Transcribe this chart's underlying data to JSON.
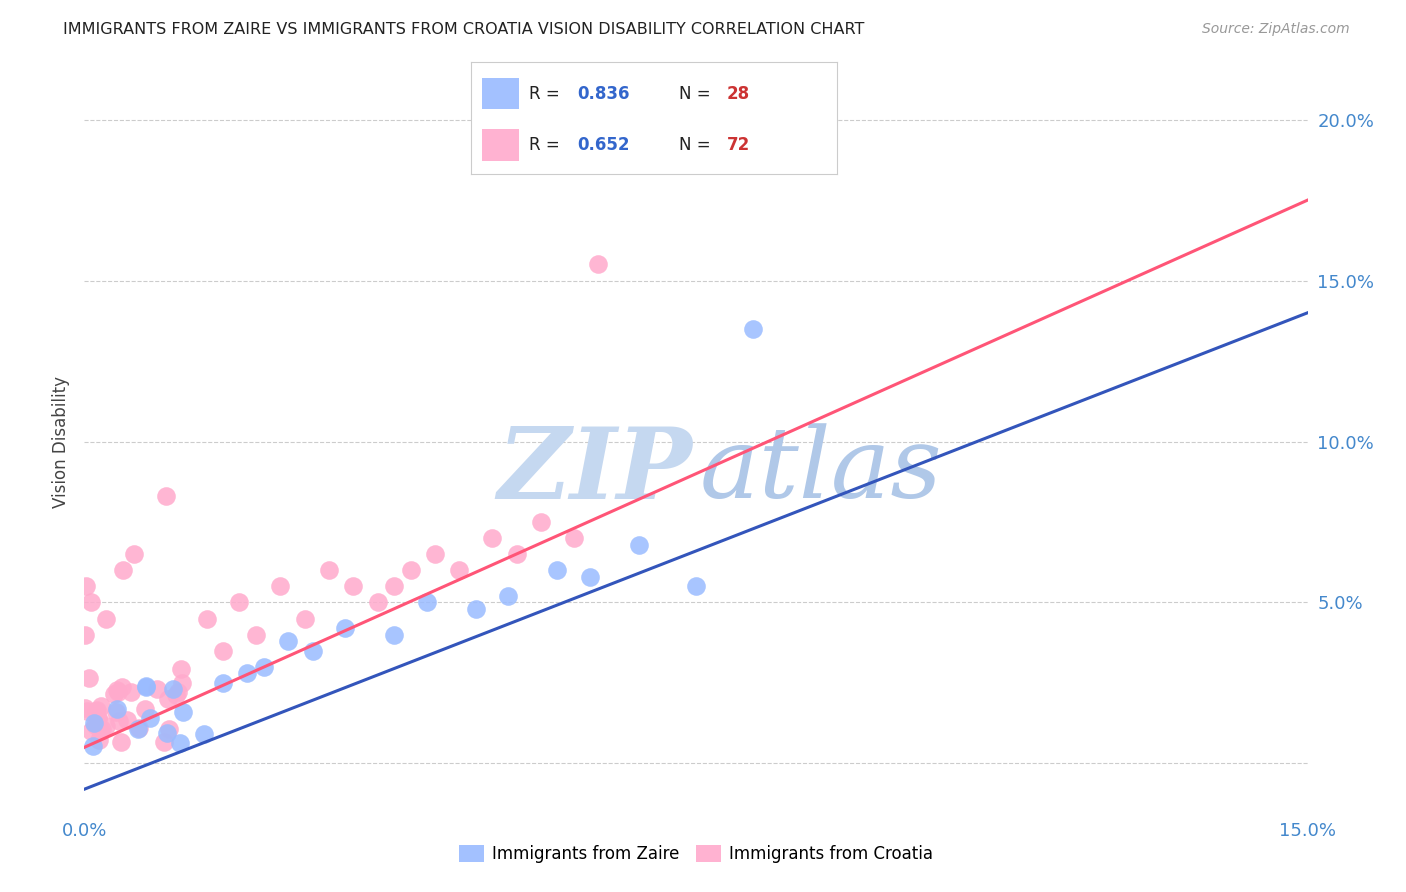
{
  "title": "IMMIGRANTS FROM ZAIRE VS IMMIGRANTS FROM CROATIA VISION DISABILITY CORRELATION CHART",
  "source": "Source: ZipAtlas.com",
  "ylabel": "Vision Disability",
  "xlim": [
    0.0,
    0.15
  ],
  "ylim": [
    -0.015,
    0.215
  ],
  "color_zaire": "#99bbff",
  "color_croatia": "#ffaacc",
  "color_zaire_line": "#3355bb",
  "color_croatia_line": "#ff5577",
  "legend_R1": "0.836",
  "legend_N1": "28",
  "legend_R2": "0.652",
  "legend_N2": "72",
  "watermark_zip_color": "#c5d8f0",
  "watermark_atlas_color": "#b0c8e8",
  "background_color": "#ffffff",
  "zaire_line_x0": 0.0,
  "zaire_line_y0": -0.008,
  "zaire_line_x1": 0.15,
  "zaire_line_y1": 0.14,
  "croatia_line_x0": 0.0,
  "croatia_line_y0": 0.005,
  "croatia_line_x1": 0.15,
  "croatia_line_y1": 0.175
}
